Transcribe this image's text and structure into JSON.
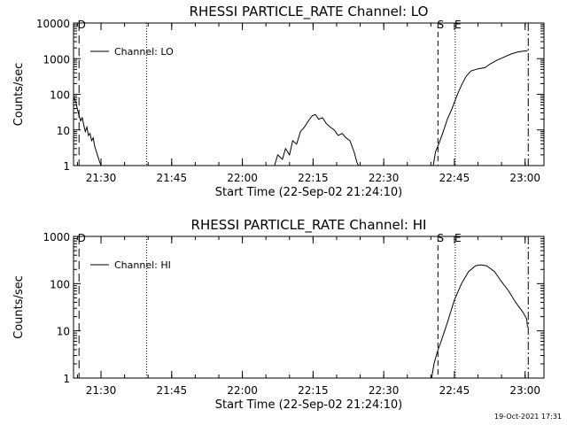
{
  "footer_timestamp": "19-Oct-2021 17:31",
  "chart_data": [
    {
      "type": "line",
      "title": "RHESSI PARTICLE_RATE Channel: LO",
      "xlabel": "Start Time (22-Sep-02 21:24:10)",
      "ylabel": "Counts/sec",
      "yscale": "log",
      "ylim": [
        1,
        10000
      ],
      "xlim": [
        "21:24:10",
        "23:04:00"
      ],
      "yticks": [
        "1",
        "10",
        "100",
        "1000",
        "10000"
      ],
      "xticks": [
        "21:30",
        "21:45",
        "22:00",
        "22:15",
        "22:30",
        "22:45",
        "23:00"
      ],
      "legend": "top-left",
      "series": [
        {
          "name": "Channel: LO",
          "segments": [
            [
              [
                "21:24:10",
                85
              ],
              [
                "21:24:40",
                60
              ],
              [
                "21:25:00",
                38
              ],
              [
                "21:25:20",
                25
              ],
              [
                "21:25:40",
                18
              ],
              [
                "21:26:00",
                22
              ],
              [
                "21:26:20",
                14
              ],
              [
                "21:26:40",
                9
              ],
              [
                "21:27:00",
                12
              ],
              [
                "21:27:20",
                7
              ],
              [
                "21:27:40",
                8
              ],
              [
                "21:28:00",
                5
              ],
              [
                "21:28:20",
                6
              ],
              [
                "21:28:40",
                3.5
              ],
              [
                "21:29:00",
                2.5
              ],
              [
                "21:29:20",
                1.8
              ],
              [
                "21:29:40",
                1.3
              ],
              [
                "21:30:00",
                1
              ]
            ],
            [
              [
                "22:06:50",
                1
              ],
              [
                "22:07:30",
                2
              ],
              [
                "22:08:30",
                1.5
              ],
              [
                "22:09:10",
                3
              ],
              [
                "22:10:00",
                2
              ],
              [
                "22:10:40",
                5
              ],
              [
                "22:11:30",
                4
              ],
              [
                "22:12:20",
                9
              ],
              [
                "22:13:10",
                12
              ],
              [
                "22:14:00",
                18
              ],
              [
                "22:14:50",
                25
              ],
              [
                "22:15:30",
                27
              ],
              [
                "22:16:10",
                20
              ],
              [
                "22:17:00",
                22
              ],
              [
                "22:17:50",
                15
              ],
              [
                "22:18:40",
                12
              ],
              [
                "22:19:30",
                10
              ],
              [
                "22:20:20",
                7
              ],
              [
                "22:21:10",
                8
              ],
              [
                "22:22:00",
                6
              ],
              [
                "22:22:50",
                5
              ],
              [
                "22:23:40",
                2.5
              ],
              [
                "22:24:20",
                1.2
              ],
              [
                "22:24:40",
                1
              ]
            ],
            [
              [
                "22:40:30",
                1
              ],
              [
                "22:41:00",
                2.5
              ],
              [
                "22:41:40",
                4
              ],
              [
                "22:42:30",
                8
              ],
              [
                "22:43:30",
                20
              ],
              [
                "22:44:30",
                40
              ],
              [
                "22:45:30",
                90
              ],
              [
                "22:46:30",
                180
              ],
              [
                "22:47:30",
                320
              ],
              [
                "22:48:30",
                450
              ],
              [
                "22:50:00",
                520
              ],
              [
                "22:51:30",
                560
              ],
              [
                "22:52:30",
                700
              ],
              [
                "22:54:00",
                900
              ],
              [
                "22:55:30",
                1100
              ],
              [
                "22:57:00",
                1350
              ],
              [
                "22:58:30",
                1550
              ],
              [
                "23:00:00",
                1650
              ],
              [
                "23:00:30",
                1650
              ]
            ]
          ]
        }
      ],
      "markers": [
        {
          "time": "21:25:20",
          "style": "long-dash",
          "label": "D"
        },
        {
          "time": "21:39:40",
          "style": "dotted",
          "label": ""
        },
        {
          "time": "22:41:30",
          "style": "dashed",
          "label": "S"
        },
        {
          "time": "22:45:10",
          "style": "dotted",
          "label": "E"
        },
        {
          "time": "23:00:40",
          "style": "dash-dot",
          "label": ""
        }
      ]
    },
    {
      "type": "line",
      "title": "RHESSI PARTICLE_RATE Channel: HI",
      "xlabel": "Start Time (22-Sep-02 21:24:10)",
      "ylabel": "Counts/sec",
      "yscale": "log",
      "ylim": [
        1,
        1000
      ],
      "xlim": [
        "21:24:10",
        "23:04:00"
      ],
      "yticks": [
        "1",
        "10",
        "100",
        "1000"
      ],
      "xticks": [
        "21:30",
        "21:45",
        "22:00",
        "22:15",
        "22:30",
        "22:45",
        "23:00"
      ],
      "legend": "top-left",
      "series": [
        {
          "name": "Channel: HI",
          "segments": [
            [
              [
                "22:40:10",
                1
              ],
              [
                "22:40:40",
                2
              ],
              [
                "22:41:20",
                3.5
              ],
              [
                "22:42:10",
                6
              ],
              [
                "22:43:30",
                15
              ],
              [
                "22:45:00",
                45
              ],
              [
                "22:46:30",
                100
              ],
              [
                "22:48:00",
                180
              ],
              [
                "22:49:30",
                240
              ],
              [
                "22:50:30",
                250
              ],
              [
                "22:51:50",
                240
              ],
              [
                "22:53:30",
                180
              ],
              [
                "22:55:00",
                110
              ],
              [
                "22:56:30",
                70
              ],
              [
                "22:58:00",
                40
              ],
              [
                "22:59:30",
                25
              ],
              [
                "23:00:20",
                18
              ],
              [
                "23:00:30",
                12
              ]
            ]
          ]
        }
      ],
      "markers": [
        {
          "time": "21:25:20",
          "style": "long-dash",
          "label": "D"
        },
        {
          "time": "21:39:40",
          "style": "dotted",
          "label": ""
        },
        {
          "time": "22:41:30",
          "style": "dashed",
          "label": "S"
        },
        {
          "time": "22:45:10",
          "style": "dotted",
          "label": "E"
        },
        {
          "time": "23:00:40",
          "style": "dash-dot",
          "label": ""
        }
      ]
    }
  ]
}
